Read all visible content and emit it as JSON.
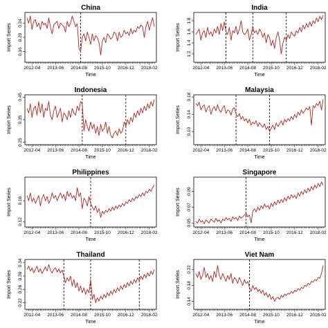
{
  "figure": {
    "line_color": "#b22222",
    "x_start": "2012-01",
    "months": 77,
    "x_ticks": [
      {
        "label": "2012-04",
        "month_index": 3
      },
      {
        "label": "2013-06",
        "month_index": 17
      },
      {
        "label": "2014-08",
        "month_index": 31
      },
      {
        "label": "2015-10",
        "month_index": 45
      },
      {
        "label": "2016-12",
        "month_index": 59
      },
      {
        "label": "2018-02",
        "month_index": 73
      }
    ]
  },
  "chart_data": [
    {
      "type": "line",
      "title": "China",
      "xlabel": "Time",
      "ylabel": "Import Series",
      "ylim": [
        0.13,
        0.27
      ],
      "yticks": [
        0.16,
        0.2,
        0.24
      ],
      "ytick_labels": [
        "0.16",
        "0.20",
        "0.24"
      ],
      "break_months": [
        32
      ],
      "values": [
        0.255,
        0.24,
        0.26,
        0.222,
        0.245,
        0.25,
        0.23,
        0.24,
        0.222,
        0.245,
        0.235,
        0.24,
        0.225,
        0.255,
        0.23,
        0.21,
        0.235,
        0.24,
        0.245,
        0.225,
        0.24,
        0.235,
        0.23,
        0.215,
        0.245,
        0.23,
        0.24,
        0.26,
        0.245,
        0.23,
        0.238,
        0.17,
        0.16,
        0.2,
        0.21,
        0.19,
        0.215,
        0.2,
        0.18,
        0.21,
        0.19,
        0.205,
        0.2,
        0.185,
        0.15,
        0.19,
        0.2,
        0.185,
        0.21,
        0.205,
        0.195,
        0.2,
        0.215,
        0.21,
        0.19,
        0.215,
        0.2,
        0.205,
        0.22,
        0.21,
        0.215,
        0.205,
        0.225,
        0.21,
        0.22,
        0.215,
        0.23,
        0.225,
        0.235,
        0.23,
        0.2,
        0.23,
        0.245,
        0.22,
        0.24,
        0.255,
        0.23
      ]
    },
    {
      "type": "line",
      "title": "India",
      "xlabel": "Time",
      "ylabel": "Import Series",
      "ylim": [
        1.05,
        1.95
      ],
      "yticks": [
        1.2,
        1.4,
        1.6,
        1.8
      ],
      "ytick_labels": [
        "1.2",
        "1.4",
        "1.6",
        "1.8"
      ],
      "break_months": [
        18,
        34,
        54
      ],
      "values": [
        1.55,
        1.6,
        1.65,
        1.45,
        1.58,
        1.62,
        1.5,
        1.68,
        1.55,
        1.6,
        1.52,
        1.65,
        1.58,
        1.7,
        1.55,
        1.75,
        1.62,
        1.78,
        1.6,
        1.55,
        1.68,
        1.45,
        1.62,
        1.58,
        1.7,
        1.55,
        1.65,
        1.8,
        1.6,
        1.55,
        1.58,
        1.65,
        1.45,
        1.55,
        1.7,
        1.58,
        1.62,
        1.55,
        1.65,
        1.6,
        1.5,
        1.58,
        1.4,
        1.55,
        1.5,
        1.35,
        1.45,
        1.3,
        1.5,
        1.6,
        1.45,
        1.2,
        1.4,
        1.5,
        1.45,
        1.55,
        1.48,
        1.6,
        1.55,
        1.52,
        1.62,
        1.58,
        1.68,
        1.6,
        1.72,
        1.65,
        1.75,
        1.68,
        1.78,
        1.7,
        1.8,
        1.75,
        1.85,
        1.78,
        1.88,
        1.82,
        1.9
      ]
    },
    {
      "type": "line",
      "title": "Indonesia",
      "xlabel": "Time",
      "ylabel": "Import Series",
      "ylim": [
        0.24,
        0.46
      ],
      "yticks": [
        0.25,
        0.35,
        0.45
      ],
      "ytick_labels": [
        "0.25",
        "0.35",
        "0.45"
      ],
      "break_months": [
        33,
        59
      ],
      "values": [
        0.4,
        0.38,
        0.42,
        0.36,
        0.4,
        0.41,
        0.37,
        0.43,
        0.38,
        0.42,
        0.36,
        0.4,
        0.39,
        0.43,
        0.37,
        0.35,
        0.39,
        0.41,
        0.36,
        0.38,
        0.4,
        0.34,
        0.38,
        0.37,
        0.35,
        0.39,
        0.36,
        0.4,
        0.38,
        0.37,
        0.41,
        0.39,
        0.43,
        0.42,
        0.3,
        0.35,
        0.32,
        0.3,
        0.34,
        0.31,
        0.33,
        0.29,
        0.32,
        0.28,
        0.33,
        0.3,
        0.31,
        0.34,
        0.29,
        0.32,
        0.28,
        0.27,
        0.29,
        0.3,
        0.28,
        0.31,
        0.29,
        0.3,
        0.34,
        0.32,
        0.35,
        0.33,
        0.36,
        0.34,
        0.38,
        0.36,
        0.39,
        0.37,
        0.4,
        0.38,
        0.41,
        0.39,
        0.42,
        0.4,
        0.43,
        0.41,
        0.44
      ]
    },
    {
      "type": "line",
      "title": "Malaysia",
      "xlabel": "Time",
      "ylabel": "Import Series",
      "ylim": [
        0.07,
        0.185
      ],
      "yticks": [
        0.1,
        0.14,
        0.18
      ],
      "ytick_labels": [
        "0.10",
        "0.14",
        "0.18"
      ],
      "break_months": [
        24,
        44
      ],
      "values": [
        0.165,
        0.16,
        0.168,
        0.15,
        0.158,
        0.162,
        0.145,
        0.155,
        0.16,
        0.14,
        0.152,
        0.158,
        0.148,
        0.162,
        0.15,
        0.145,
        0.155,
        0.16,
        0.142,
        0.15,
        0.148,
        0.138,
        0.152,
        0.155,
        0.14,
        0.135,
        0.142,
        0.128,
        0.135,
        0.125,
        0.13,
        0.12,
        0.128,
        0.115,
        0.122,
        0.118,
        0.125,
        0.112,
        0.12,
        0.115,
        0.11,
        0.118,
        0.105,
        0.112,
        0.1,
        0.108,
        0.115,
        0.105,
        0.12,
        0.112,
        0.118,
        0.125,
        0.115,
        0.128,
        0.122,
        0.13,
        0.125,
        0.135,
        0.128,
        0.14,
        0.132,
        0.145,
        0.138,
        0.15,
        0.142,
        0.148,
        0.155,
        0.15,
        0.158,
        0.115,
        0.16,
        0.155,
        0.165,
        0.16,
        0.17,
        0.15,
        0.175
      ]
    },
    {
      "type": "line",
      "title": "Philippines",
      "xlabel": "Time",
      "ylabel": "Import Series",
      "ylim": [
        0.11,
        0.205
      ],
      "yticks": [
        0.12,
        0.16
      ],
      "ytick_labels": [
        "0.12",
        "0.16"
      ],
      "break_months": [
        38
      ],
      "values": [
        0.17,
        0.16,
        0.175,
        0.158,
        0.165,
        0.155,
        0.162,
        0.17,
        0.15,
        0.165,
        0.172,
        0.16,
        0.168,
        0.155,
        0.162,
        0.175,
        0.165,
        0.17,
        0.16,
        0.168,
        0.175,
        0.165,
        0.172,
        0.16,
        0.178,
        0.168,
        0.175,
        0.165,
        0.17,
        0.16,
        0.185,
        0.168,
        0.175,
        0.145,
        0.165,
        0.16,
        0.15,
        0.168,
        0.155,
        0.148,
        0.142,
        0.15,
        0.138,
        0.145,
        0.128,
        0.14,
        0.135,
        0.142,
        0.138,
        0.145,
        0.14,
        0.148,
        0.142,
        0.15,
        0.145,
        0.152,
        0.148,
        0.155,
        0.15,
        0.158,
        0.155,
        0.162,
        0.158,
        0.165,
        0.16,
        0.168,
        0.165,
        0.172,
        0.168,
        0.175,
        0.17,
        0.178,
        0.175,
        0.182,
        0.178,
        0.185,
        0.19
      ]
    },
    {
      "type": "line",
      "title": "Singapore",
      "xlabel": "Time",
      "ylabel": "Import Series",
      "ylim": [
        0.045,
        0.108
      ],
      "yticks": [
        0.05,
        0.07,
        0.09
      ],
      "ytick_labels": [
        "0.05",
        "0.07",
        "0.09"
      ],
      "break_months": [
        30
      ],
      "values": [
        0.052,
        0.05,
        0.055,
        0.051,
        0.053,
        0.049,
        0.054,
        0.052,
        0.05,
        0.055,
        0.053,
        0.051,
        0.056,
        0.052,
        0.054,
        0.05,
        0.055,
        0.053,
        0.057,
        0.054,
        0.056,
        0.052,
        0.058,
        0.055,
        0.057,
        0.053,
        0.059,
        0.056,
        0.058,
        0.06,
        0.062,
        0.058,
        0.06,
        0.05,
        0.065,
        0.068,
        0.064,
        0.07,
        0.066,
        0.072,
        0.068,
        0.074,
        0.07,
        0.072,
        0.068,
        0.075,
        0.071,
        0.077,
        0.073,
        0.079,
        0.075,
        0.08,
        0.076,
        0.082,
        0.078,
        0.084,
        0.08,
        0.086,
        0.082,
        0.085,
        0.081,
        0.088,
        0.084,
        0.09,
        0.086,
        0.092,
        0.088,
        0.094,
        0.09,
        0.096,
        0.092,
        0.098,
        0.094,
        0.1,
        0.096,
        0.102,
        0.098
      ]
    },
    {
      "type": "line",
      "title": "Thailand",
      "xlabel": "Time",
      "ylabel": "Import Series",
      "ylim": [
        0.2,
        0.35
      ],
      "yticks": [
        0.22,
        0.26,
        0.3,
        0.34
      ],
      "ytick_labels": [
        "0.22",
        "0.26",
        "0.30",
        "0.34"
      ],
      "break_months": [
        22,
        38,
        67
      ],
      "values": [
        0.32,
        0.33,
        0.315,
        0.325,
        0.31,
        0.32,
        0.33,
        0.312,
        0.322,
        0.308,
        0.318,
        0.328,
        0.315,
        0.335,
        0.318,
        0.31,
        0.32,
        0.325,
        0.312,
        0.322,
        0.31,
        0.318,
        0.3,
        0.28,
        0.295,
        0.285,
        0.3,
        0.27,
        0.29,
        0.265,
        0.28,
        0.255,
        0.27,
        0.25,
        0.265,
        0.245,
        0.26,
        0.25,
        0.29,
        0.23,
        0.245,
        0.22,
        0.235,
        0.225,
        0.24,
        0.23,
        0.245,
        0.235,
        0.25,
        0.24,
        0.255,
        0.245,
        0.26,
        0.25,
        0.265,
        0.255,
        0.27,
        0.26,
        0.275,
        0.265,
        0.28,
        0.27,
        0.285,
        0.275,
        0.29,
        0.28,
        0.295,
        0.285,
        0.3,
        0.29,
        0.305,
        0.295,
        0.31,
        0.3,
        0.315,
        0.305,
        0.32
      ]
    },
    {
      "type": "line",
      "title": "Viet Nam",
      "xlabel": "Time",
      "ylabel": "Import Series",
      "ylim": [
        0.12,
        0.245
      ],
      "yticks": [
        0.14,
        0.18,
        0.22
      ],
      "ytick_labels": [
        "0.14",
        "0.18",
        "0.22"
      ],
      "break_months": [
        32
      ],
      "values": [
        0.21,
        0.2,
        0.215,
        0.195,
        0.205,
        0.225,
        0.2,
        0.21,
        0.195,
        0.205,
        0.19,
        0.215,
        0.2,
        0.23,
        0.205,
        0.195,
        0.21,
        0.2,
        0.19,
        0.205,
        0.195,
        0.21,
        0.185,
        0.2,
        0.195,
        0.185,
        0.2,
        0.19,
        0.18,
        0.195,
        0.185,
        0.19,
        0.175,
        0.165,
        0.18,
        0.17,
        0.175,
        0.165,
        0.17,
        0.16,
        0.168,
        0.155,
        0.162,
        0.15,
        0.158,
        0.145,
        0.152,
        0.14,
        0.148,
        0.15,
        0.145,
        0.155,
        0.15,
        0.158,
        0.155,
        0.16,
        0.158,
        0.165,
        0.16,
        0.168,
        0.165,
        0.172,
        0.168,
        0.175,
        0.172,
        0.18,
        0.178,
        0.185,
        0.182,
        0.19,
        0.188,
        0.195,
        0.192,
        0.2,
        0.198,
        0.21,
        0.23
      ]
    }
  ]
}
